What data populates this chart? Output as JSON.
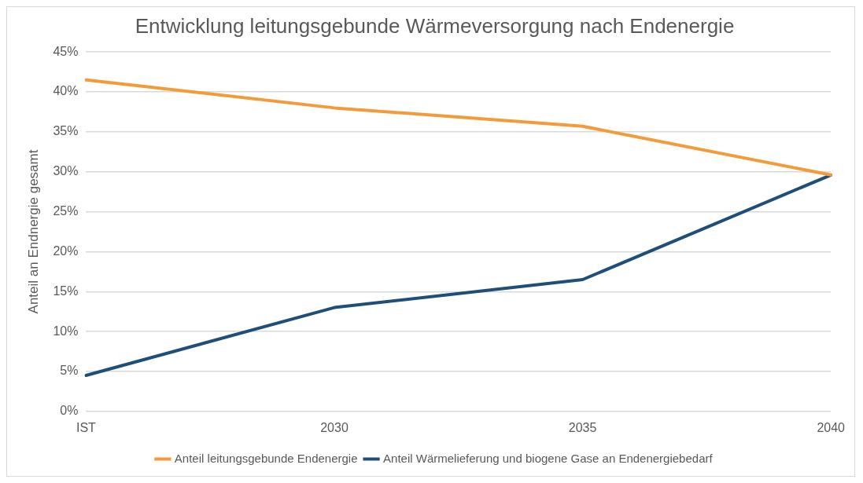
{
  "chart_data": {
    "type": "line",
    "title": "Entwicklung leitungsgebunde Wärmeversorgung nach Endenergie",
    "ylabel": "Anteil an Endnergie gesamt",
    "categories": [
      "IST",
      "2030",
      "2035",
      "2040"
    ],
    "series": [
      {
        "name": "Anteil leitungsgebunde Endenergie",
        "color": "#f39b3a",
        "values": [
          41.5,
          38,
          35.7,
          29.6
        ]
      },
      {
        "name": "Anteil Wärmelieferung und biogene Gase an Endenergiebedarf",
        "color": "#1f4e79",
        "values": [
          4.5,
          13,
          16.5,
          29.6
        ]
      }
    ],
    "ylim": [
      0,
      45
    ],
    "yticks": [
      {
        "value": 0,
        "label": "0%"
      },
      {
        "value": 5,
        "label": "5%"
      },
      {
        "value": 10,
        "label": "10%"
      },
      {
        "value": 15,
        "label": "15%"
      },
      {
        "value": 20,
        "label": "20%"
      },
      {
        "value": 25,
        "label": "25%"
      },
      {
        "value": 30,
        "label": "30%"
      },
      {
        "value": 35,
        "label": "35%"
      },
      {
        "value": 40,
        "label": "40%"
      },
      {
        "value": 45,
        "label": "45%"
      }
    ],
    "grid": "y",
    "legend": "bottom",
    "marker": "none",
    "line_style": "solid"
  }
}
